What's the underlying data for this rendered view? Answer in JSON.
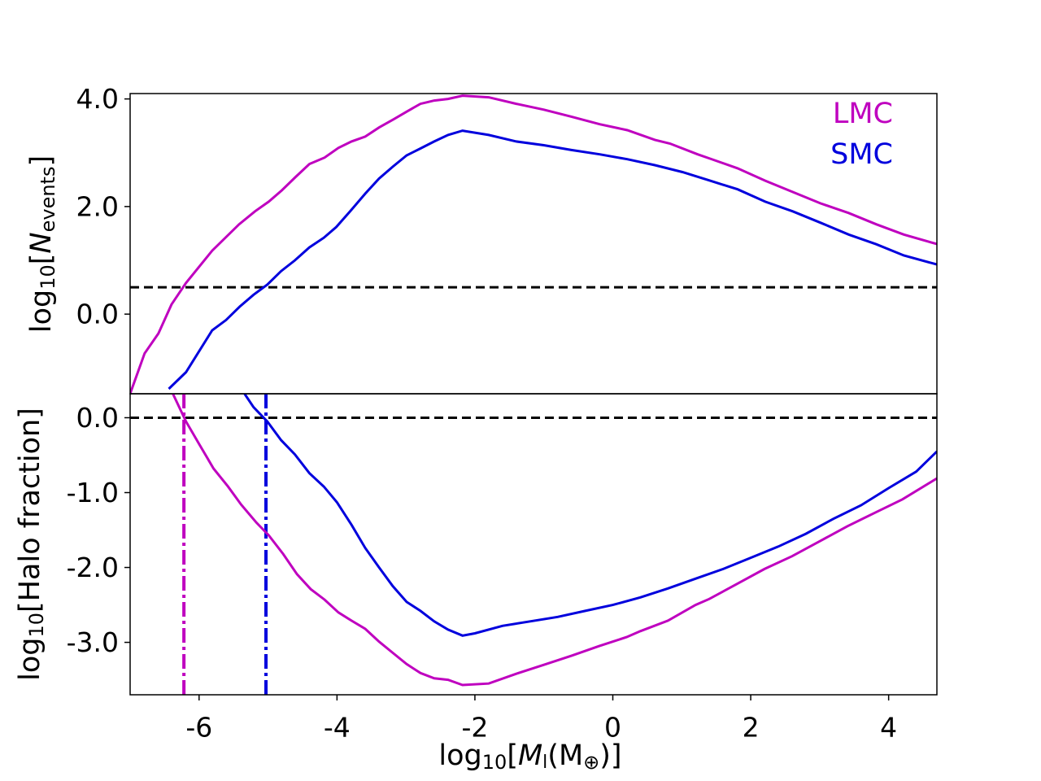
{
  "chart_data": [
    {
      "type": "line",
      "ylabel": [
        "log",
        "10",
        "[",
        "N",
        "events",
        "]"
      ],
      "xlim": [
        -7.0,
        4.7
      ],
      "ylim": [
        -1.48,
        4.1
      ],
      "yticks": [
        {
          "value": 0,
          "label": "0.0"
        },
        {
          "value": 2,
          "label": "2.0"
        },
        {
          "value": 4,
          "label": "4.0"
        }
      ],
      "hline": 0.5,
      "legend": "upper right",
      "series": [
        {
          "name": "LMC",
          "color": "#bf00bf",
          "x": [
            -7.0,
            -6.79,
            -6.59,
            -6.4,
            -6.19,
            -5.81,
            -5.42,
            -5.19,
            -4.99,
            -4.8,
            -4.6,
            -4.4,
            -4.18,
            -3.98,
            -3.79,
            -3.59,
            -3.39,
            -3.18,
            -2.98,
            -2.79,
            -2.59,
            -2.39,
            -2.18,
            -1.8,
            -1.4,
            -1.0,
            -0.6,
            -0.19,
            0.21,
            0.61,
            0.83,
            1.23,
            1.41,
            1.81,
            2.21,
            2.61,
            3.01,
            3.42,
            3.82,
            4.22,
            4.71
          ],
          "values": [
            -1.48,
            -0.73,
            -0.36,
            0.18,
            0.58,
            1.18,
            1.67,
            1.91,
            2.09,
            2.3,
            2.55,
            2.79,
            2.91,
            3.09,
            3.21,
            3.3,
            3.47,
            3.62,
            3.77,
            3.91,
            3.97,
            4.0,
            4.06,
            4.03,
            3.91,
            3.8,
            3.67,
            3.53,
            3.42,
            3.24,
            3.17,
            2.97,
            2.89,
            2.71,
            2.48,
            2.27,
            2.06,
            1.88,
            1.67,
            1.48,
            1.3
          ]
        },
        {
          "name": "SMC",
          "color": "#0000dd",
          "x": [
            -6.44,
            -6.19,
            -5.81,
            -5.61,
            -5.41,
            -5.21,
            -5.01,
            -4.81,
            -4.61,
            -4.4,
            -4.19,
            -4.01,
            -3.81,
            -3.59,
            -3.39,
            -3.19,
            -2.99,
            -2.79,
            -2.59,
            -2.39,
            -2.18,
            -1.8,
            -1.4,
            -1.0,
            -0.6,
            -0.19,
            0.21,
            0.61,
            1.01,
            1.41,
            1.81,
            2.21,
            2.61,
            3.01,
            3.42,
            3.82,
            4.22,
            4.71
          ],
          "values": [
            -1.39,
            -1.08,
            -0.3,
            -0.11,
            0.14,
            0.36,
            0.55,
            0.8,
            1.0,
            1.24,
            1.42,
            1.62,
            1.91,
            2.24,
            2.52,
            2.74,
            2.95,
            3.08,
            3.21,
            3.33,
            3.41,
            3.33,
            3.21,
            3.14,
            3.05,
            2.97,
            2.88,
            2.77,
            2.64,
            2.48,
            2.32,
            2.09,
            1.91,
            1.7,
            1.48,
            1.3,
            1.09,
            0.92
          ]
        }
      ]
    },
    {
      "type": "line",
      "ylabel": [
        "log",
        "10",
        "[Halo fraction]"
      ],
      "xlabel": [
        "log",
        "10",
        "[",
        "M",
        "l",
        "(M",
        "⊕",
        ")]"
      ],
      "xlim": [
        -7.0,
        4.7
      ],
      "ylim": [
        -3.7,
        0.32
      ],
      "xticks": [
        -6,
        -4,
        -2,
        0,
        2,
        4
      ],
      "yticks": [
        {
          "value": 0,
          "label": "0.0"
        },
        {
          "value": -1,
          "label": "-1.0"
        },
        {
          "value": -2,
          "label": "-2.0"
        },
        {
          "value": -3,
          "label": "-3.0"
        }
      ],
      "hline": 0,
      "vlines": [
        {
          "x": -6.22,
          "color": "#bf00bf"
        },
        {
          "x": -5.03,
          "color": "#0000dd"
        }
      ],
      "series": [
        {
          "color": "#bf00bf",
          "x": [
            -6.38,
            -6.19,
            -6.0,
            -5.79,
            -5.58,
            -5.39,
            -5.17,
            -4.99,
            -4.78,
            -4.58,
            -4.38,
            -4.18,
            -3.98,
            -3.79,
            -3.59,
            -3.39,
            -3.19,
            -2.99,
            -2.79,
            -2.59,
            -2.39,
            -2.18,
            -1.8,
            -1.4,
            -1.0,
            -0.6,
            -0.2,
            0.2,
            0.4,
            0.8,
            1.2,
            1.4,
            1.8,
            2.2,
            2.6,
            3.0,
            3.4,
            3.8,
            4.2,
            4.7
          ],
          "values": [
            0.32,
            -0.05,
            -0.35,
            -0.68,
            -0.92,
            -1.16,
            -1.4,
            -1.57,
            -1.82,
            -2.09,
            -2.29,
            -2.43,
            -2.6,
            -2.71,
            -2.82,
            -2.99,
            -3.14,
            -3.29,
            -3.41,
            -3.48,
            -3.5,
            -3.57,
            -3.55,
            -3.42,
            -3.3,
            -3.18,
            -3.05,
            -2.93,
            -2.85,
            -2.71,
            -2.5,
            -2.42,
            -2.22,
            -2.02,
            -1.85,
            -1.65,
            -1.45,
            -1.27,
            -1.09,
            -0.81
          ]
        },
        {
          "color": "#0000dd",
          "x": [
            -5.34,
            -5.21,
            -5.01,
            -4.81,
            -4.61,
            -4.4,
            -4.19,
            -4.0,
            -3.79,
            -3.59,
            -3.39,
            -3.19,
            -2.99,
            -2.79,
            -2.59,
            -2.39,
            -2.18,
            -2.0,
            -1.6,
            -1.2,
            -0.8,
            -0.4,
            0,
            0.4,
            0.8,
            1.2,
            1.6,
            2.0,
            2.4,
            2.8,
            3.2,
            3.6,
            4.0,
            4.4,
            4.7
          ],
          "values": [
            0.32,
            0.14,
            -0.05,
            -0.3,
            -0.49,
            -0.74,
            -0.92,
            -1.13,
            -1.43,
            -1.74,
            -2.0,
            -2.25,
            -2.46,
            -2.58,
            -2.72,
            -2.83,
            -2.91,
            -2.88,
            -2.78,
            -2.72,
            -2.66,
            -2.58,
            -2.5,
            -2.4,
            -2.28,
            -2.15,
            -2.02,
            -1.87,
            -1.72,
            -1.55,
            -1.35,
            -1.17,
            -0.94,
            -0.72,
            -0.45
          ]
        }
      ]
    }
  ]
}
